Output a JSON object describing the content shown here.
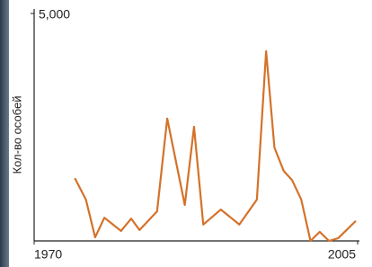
{
  "chart_data": {
    "type": "line",
    "y_label": "Кол-во особей",
    "x": [
      1974.4,
      1975.6,
      1976.6,
      1977.6,
      1979.4,
      1980.5,
      1981.4,
      1983.3,
      1984.4,
      1986.3,
      1987.3,
      1988.3,
      1990.2,
      1992.2,
      1994.1,
      1995.1,
      1996.0,
      1997.0,
      1997.9,
      1998.9,
      1999.9,
      2000.9,
      2001.9,
      2002.9,
      2004.8
    ],
    "series": [
      {
        "color": "#d4722a",
        "values": [
          1380,
          910,
          80,
          510,
          220,
          490,
          240,
          650,
          2690,
          790,
          2510,
          360,
          690,
          360,
          910,
          4170,
          2050,
          1540,
          1340,
          910,
          0,
          200,
          0,
          60,
          440
        ]
      }
    ],
    "xlim": [
      1970,
      2005
    ],
    "xticks": [
      1970,
      2005
    ],
    "ylim": [
      0,
      5000
    ],
    "yticks": [
      {
        "value": 5000,
        "label": "5,000"
      }
    ]
  }
}
